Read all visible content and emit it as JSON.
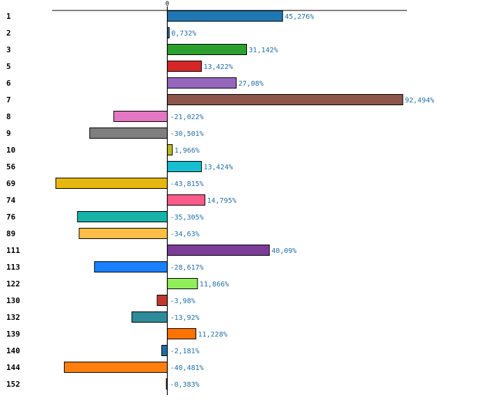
{
  "chart_data": {
    "type": "bar",
    "orientation": "horizontal",
    "title": "",
    "xlabel": "",
    "ylabel": "",
    "xlim": [
      -48.5,
      102.4
    ],
    "axis_tick_label": "0",
    "categories": [
      "1",
      "2",
      "3",
      "5",
      "6",
      "7",
      "8",
      "9",
      "10",
      "56",
      "69",
      "74",
      "76",
      "89",
      "111",
      "113",
      "122",
      "130",
      "132",
      "139",
      "140",
      "144",
      "152"
    ],
    "values": [
      45.276,
      0.732,
      31.142,
      13.422,
      27.08,
      92.494,
      -21.022,
      -30.501,
      1.966,
      13.424,
      -43.815,
      14.795,
      -35.305,
      -34.63,
      40.09,
      -28.617,
      11.866,
      -3.98,
      -13.92,
      11.228,
      -2.181,
      -40.481,
      -0.383
    ],
    "value_labels": [
      "45,276%",
      "0,732%",
      "31,142%",
      "13,422%",
      "27,08%",
      "92,494%",
      "-21,022%",
      "-30,501%",
      "1,966%",
      "13,424%",
      "-43,815%",
      "14,795%",
      "-35,305%",
      "-34,63%",
      "40,09%",
      "-28,617%",
      "11,866%",
      "-3,98%",
      "-13,92%",
      "11,228%",
      "-2,181%",
      "-40,481%",
      "-0,383%"
    ],
    "colors": [
      "#1f77b4",
      "#1f77b4",
      "#2ca02c",
      "#d62728",
      "#9467bd",
      "#8c564b",
      "#e377c2",
      "#7f7f7f",
      "#bcbd22",
      "#17becf",
      "#e6b70f",
      "#ff5b8a",
      "#17b3a8",
      "#ffbf47",
      "#7d3c98",
      "#1a80ff",
      "#90ee5a",
      "#c0392b",
      "#2e8b9a",
      "#ff7100",
      "#1f6fa8",
      "#ff7f0e",
      "#555555"
    ],
    "grid": false,
    "legend": "none"
  }
}
